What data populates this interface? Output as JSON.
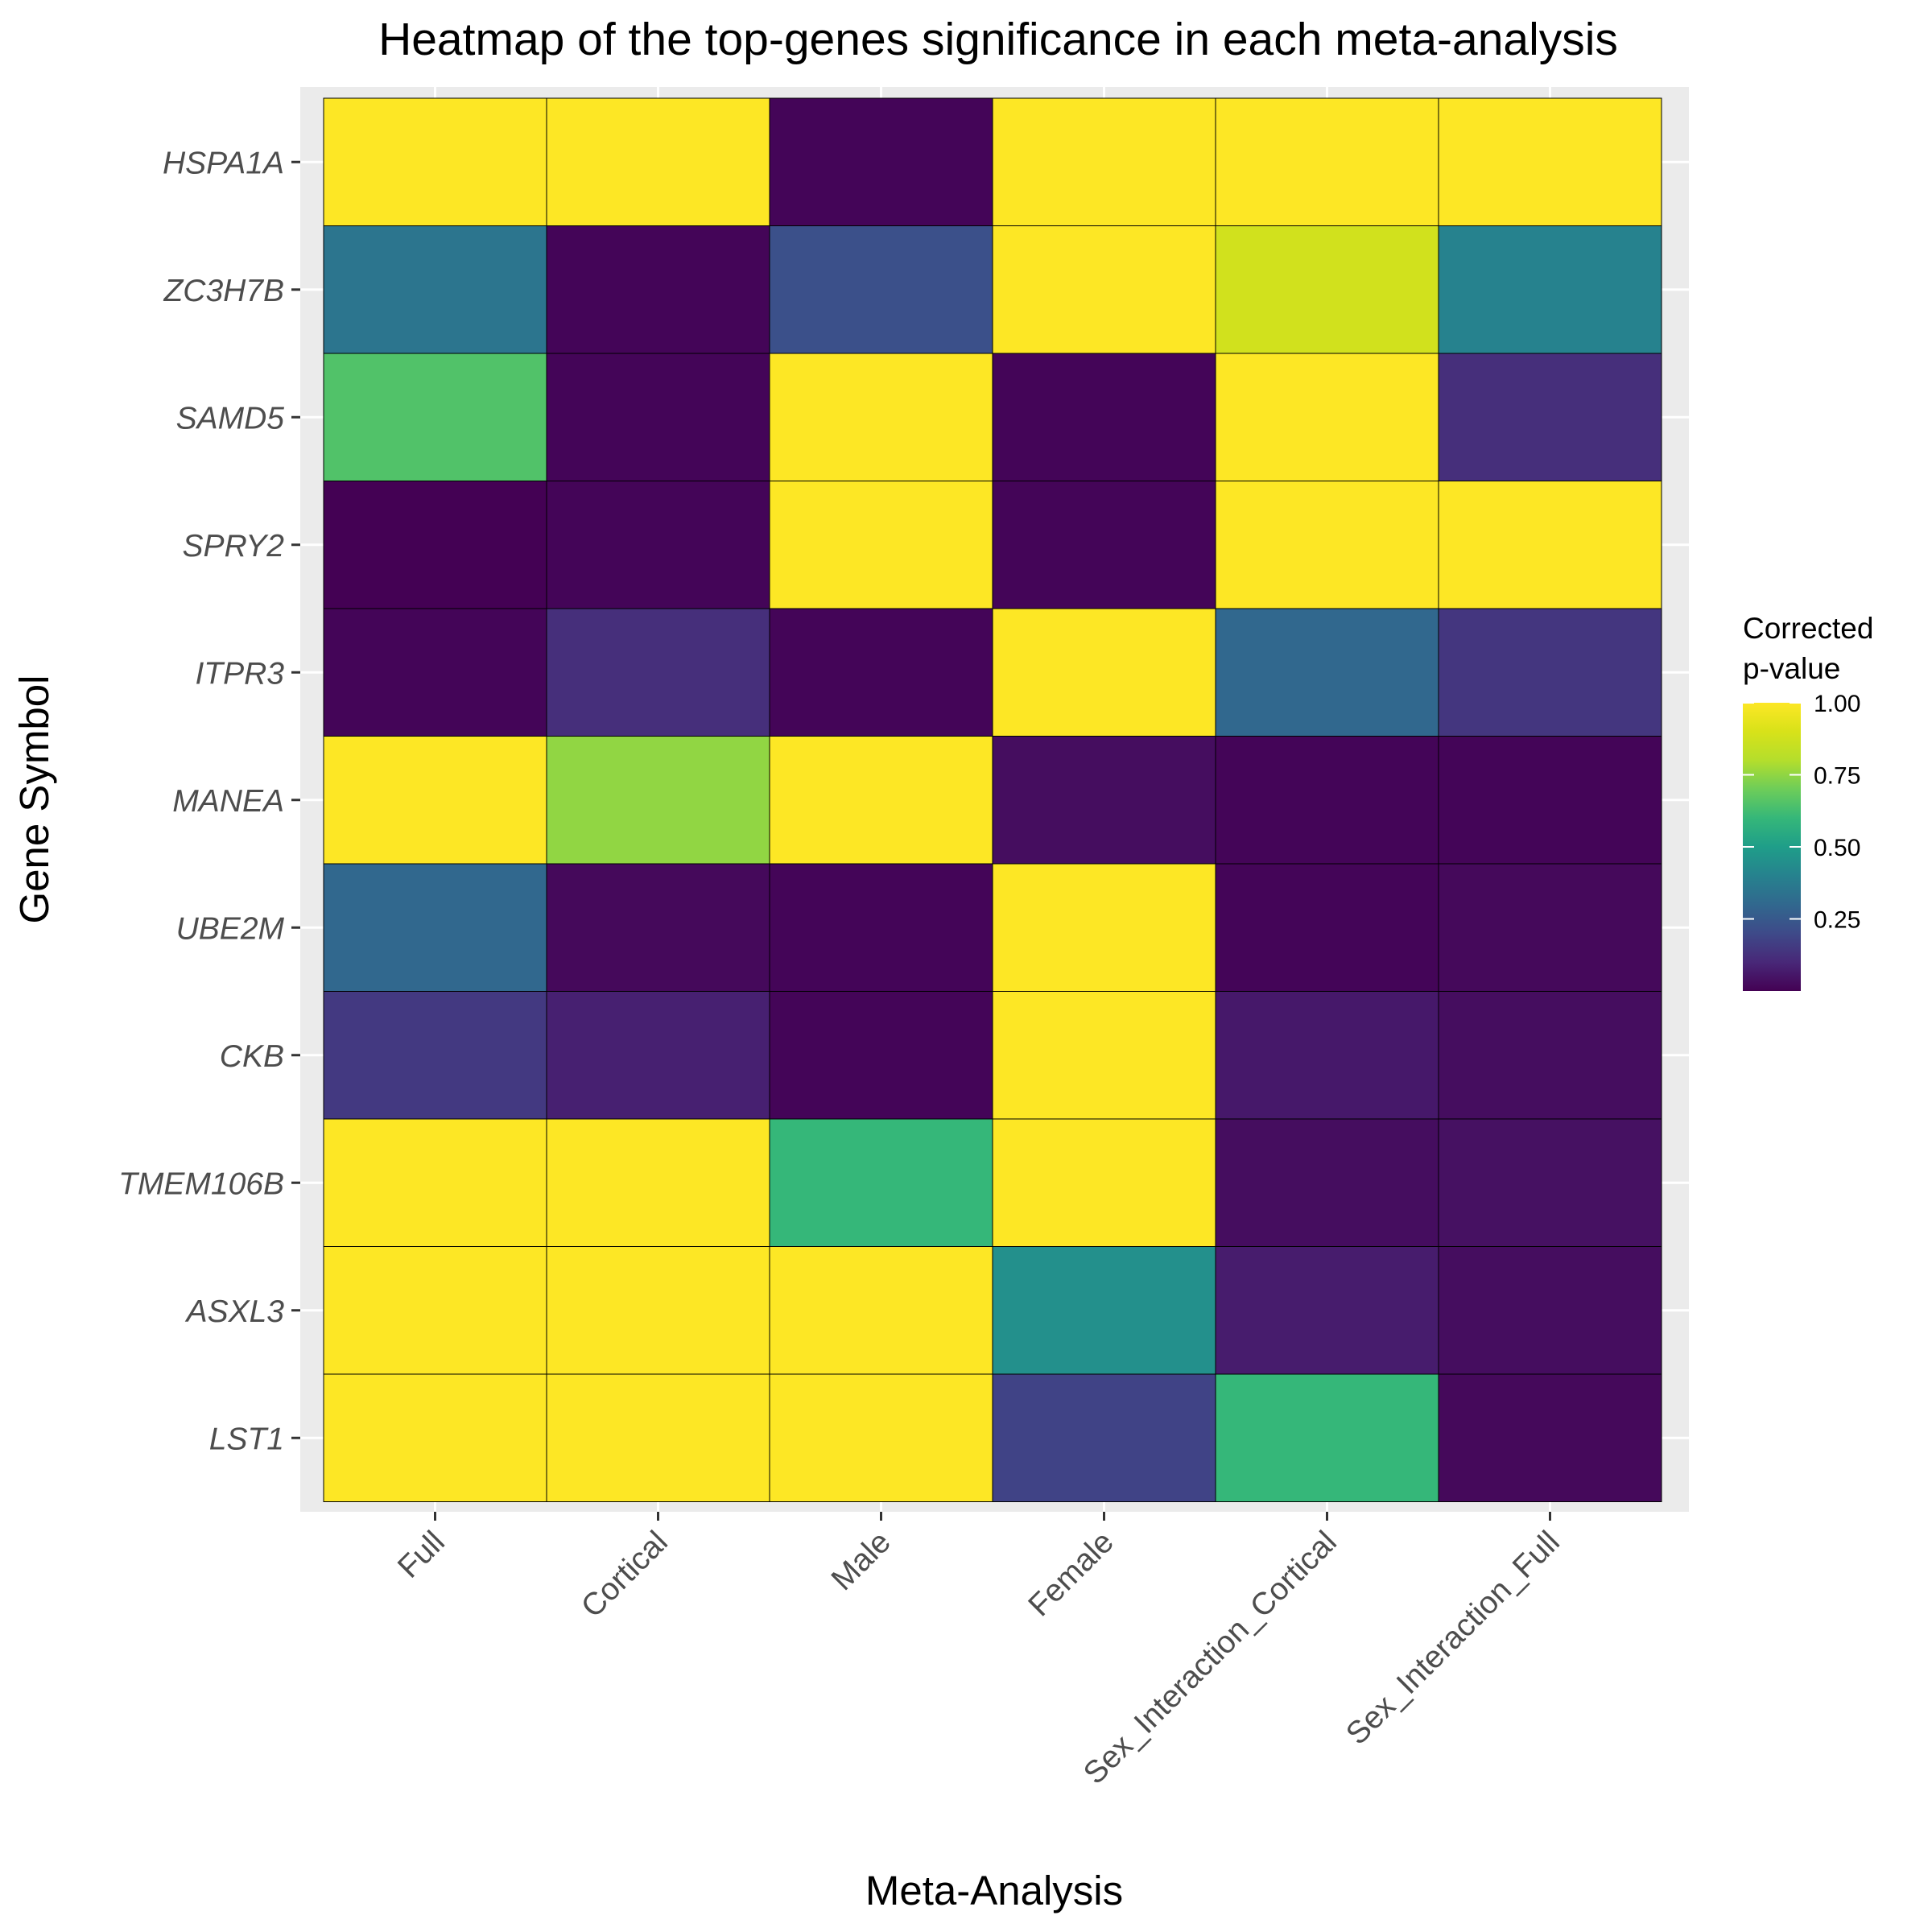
{
  "chart_data": {
    "type": "heatmap",
    "title": "Heatmap of the top-genes significance in each meta-analysis",
    "xlabel": "Meta-Analysis",
    "ylabel": "Gene Symbol",
    "x_categories": [
      "Full",
      "Cortical",
      "Male",
      "Female",
      "Sex_Interaction_Cortical",
      "Sex_Interaction_Full"
    ],
    "y_categories": [
      "HSPA1A",
      "ZC3H7B",
      "SAMD5",
      "SPRY2",
      "ITPR3",
      "MANEA",
      "UBE2M",
      "CKB",
      "TMEM106B",
      "ASXL3",
      "LST1"
    ],
    "values": [
      [
        1.0,
        1.0,
        0.01,
        1.0,
        1.0,
        1.0
      ],
      [
        0.35,
        0.01,
        0.22,
        1.0,
        0.88,
        0.4
      ],
      [
        0.65,
        0.01,
        1.0,
        0.01,
        1.0,
        0.12
      ],
      [
        0.0,
        0.01,
        1.0,
        0.01,
        1.0,
        1.0
      ],
      [
        0.01,
        0.12,
        0.01,
        1.0,
        0.3,
        0.14
      ],
      [
        1.0,
        0.75,
        1.0,
        0.03,
        0.01,
        0.01
      ],
      [
        0.3,
        0.02,
        0.01,
        1.0,
        0.01,
        0.02
      ],
      [
        0.15,
        0.08,
        0.01,
        1.0,
        0.06,
        0.03
      ],
      [
        1.0,
        1.0,
        0.6,
        1.0,
        0.03,
        0.04
      ],
      [
        1.0,
        1.0,
        1.0,
        0.45,
        0.07,
        0.03
      ],
      [
        1.0,
        1.0,
        1.0,
        0.18,
        0.6,
        0.02
      ]
    ],
    "color_scale": "viridis",
    "legend": {
      "title_lines": [
        "Corrected",
        "p-value"
      ],
      "ticks": [
        1.0,
        0.75,
        0.5,
        0.25
      ],
      "tick_labels": [
        "1.00",
        "0.75",
        "0.50",
        "0.25"
      ],
      "range": [
        0.0,
        1.0
      ],
      "placement": "right"
    },
    "grid": true
  }
}
